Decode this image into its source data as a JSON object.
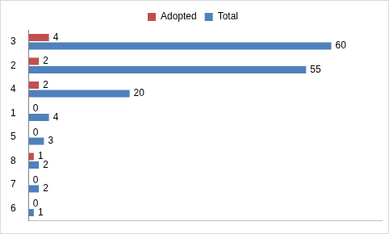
{
  "chart_data": {
    "type": "bar",
    "orientation": "horizontal",
    "categories": [
      "3",
      "2",
      "4",
      "1",
      "5",
      "8",
      "7",
      "6"
    ],
    "series": [
      {
        "name": "Adopted",
        "color": "#c0504d",
        "values": [
          4,
          2,
          2,
          0,
          0,
          1,
          0,
          0
        ]
      },
      {
        "name": "Total",
        "color": "#4f81bd",
        "values": [
          60,
          55,
          20,
          4,
          3,
          2,
          2,
          1
        ]
      }
    ],
    "xlim": [
      0,
      70
    ],
    "grid": false,
    "legend": "top",
    "data_labels": true,
    "tick_labels": "y"
  }
}
